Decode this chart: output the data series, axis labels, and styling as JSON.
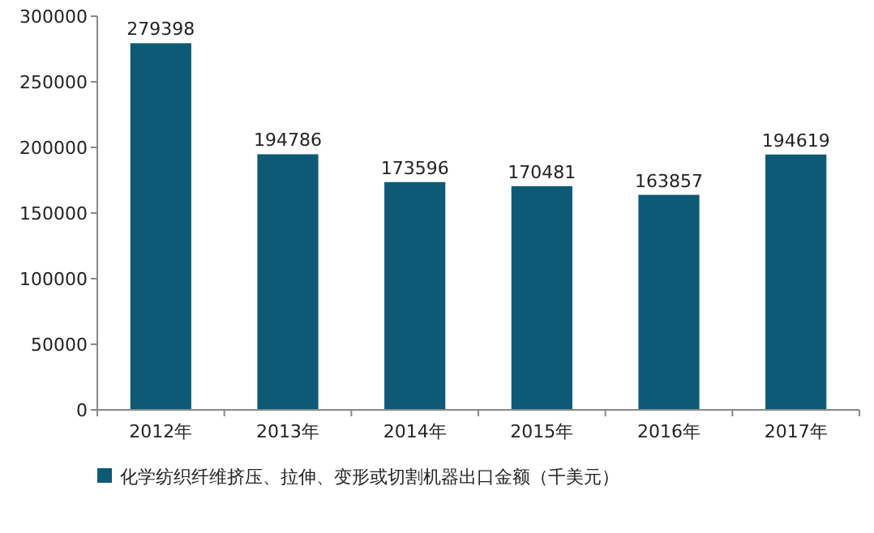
{
  "chart_data": {
    "type": "bar",
    "categories": [
      "2012年",
      "2013年",
      "2014年",
      "2015年",
      "2016年",
      "2017年"
    ],
    "series": [
      {
        "name": "化学纺织纤维挤压、拉伸、变形或切割机器出口金额（千美元）",
        "color": "#0e5a76",
        "values": [
          279398,
          194786,
          173596,
          170481,
          163857,
          194619
        ]
      }
    ],
    "ylim": [
      0,
      300000
    ],
    "yticks": [
      0,
      50000,
      100000,
      150000,
      200000,
      250000,
      300000
    ],
    "data_labels": true,
    "grid": false,
    "legend": "bottom"
  }
}
